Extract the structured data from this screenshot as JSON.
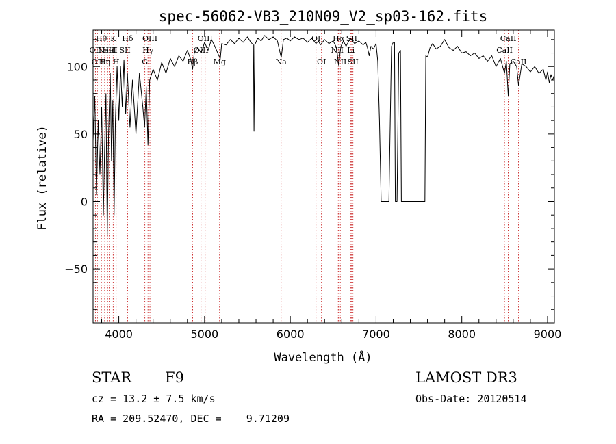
{
  "colors": {
    "axis": "#000000",
    "spectrum": "#000000",
    "line_marker": "#c00000",
    "background": "#ffffff"
  },
  "info": {
    "object_type": "STAR",
    "subclass": "F9",
    "survey": "LAMOST DR3",
    "cz": "cz = 13.2 ± 7.5 km/s",
    "obs_date": "Obs-Date: 20120514",
    "coords": "RA = 209.52470, DEC =    9.71209"
  },
  "chart_data": {
    "type": "line",
    "title": "spec-56062-VB3_210N09_V2_sp03-162.fits",
    "xlabel": "Wavelength (Å)",
    "ylabel": "Flux (relative)",
    "xlim": [
      3700,
      9080
    ],
    "ylim": [
      -90,
      127
    ],
    "xticks": [
      4000,
      5000,
      6000,
      7000,
      8000,
      9000
    ],
    "yticks": [
      -50,
      0,
      50,
      100
    ],
    "x_minor_step": 200,
    "y_minor_step": 10,
    "spectrum": [
      [
        3700,
        45
      ],
      [
        3720,
        78
      ],
      [
        3740,
        5
      ],
      [
        3760,
        60
      ],
      [
        3780,
        20
      ],
      [
        3800,
        70
      ],
      [
        3820,
        -10
      ],
      [
        3835,
        40
      ],
      [
        3850,
        80
      ],
      [
        3865,
        -25
      ],
      [
        3880,
        50
      ],
      [
        3900,
        95
      ],
      [
        3915,
        30
      ],
      [
        3930,
        75
      ],
      [
        3945,
        -10
      ],
      [
        3960,
        60
      ],
      [
        3980,
        100
      ],
      [
        4000,
        60
      ],
      [
        4020,
        100
      ],
      [
        4040,
        70
      ],
      [
        4060,
        105
      ],
      [
        4080,
        65
      ],
      [
        4100,
        95
      ],
      [
        4130,
        55
      ],
      [
        4160,
        90
      ],
      [
        4200,
        50
      ],
      [
        4240,
        95
      ],
      [
        4280,
        70
      ],
      [
        4300,
        55
      ],
      [
        4320,
        85
      ],
      [
        4340,
        42
      ],
      [
        4360,
        90
      ],
      [
        4400,
        98
      ],
      [
        4450,
        90
      ],
      [
        4500,
        103
      ],
      [
        4550,
        95
      ],
      [
        4600,
        106
      ],
      [
        4650,
        100
      ],
      [
        4700,
        108
      ],
      [
        4750,
        104
      ],
      [
        4800,
        112
      ],
      [
        4840,
        105
      ],
      [
        4861,
        98
      ],
      [
        4880,
        110
      ],
      [
        4920,
        114
      ],
      [
        4960,
        110
      ],
      [
        5000,
        118
      ],
      [
        5040,
        112
      ],
      [
        5080,
        120
      ],
      [
        5120,
        115
      ],
      [
        5167,
        108
      ],
      [
        5184,
        106
      ],
      [
        5200,
        117
      ],
      [
        5250,
        116
      ],
      [
        5300,
        120
      ],
      [
        5350,
        117
      ],
      [
        5400,
        121
      ],
      [
        5450,
        118
      ],
      [
        5500,
        122
      ],
      [
        5540,
        118
      ],
      [
        5570,
        116
      ],
      [
        5577,
        52
      ],
      [
        5585,
        116
      ],
      [
        5620,
        121
      ],
      [
        5660,
        119
      ],
      [
        5700,
        123
      ],
      [
        5750,
        120
      ],
      [
        5800,
        122
      ],
      [
        5850,
        119
      ],
      [
        5889,
        108
      ],
      [
        5895,
        107
      ],
      [
        5920,
        120
      ],
      [
        5960,
        121
      ],
      [
        6000,
        119
      ],
      [
        6050,
        122
      ],
      [
        6100,
        120
      ],
      [
        6150,
        121
      ],
      [
        6200,
        118
      ],
      [
        6250,
        121
      ],
      [
        6300,
        117
      ],
      [
        6330,
        119
      ],
      [
        6350,
        116
      ],
      [
        6400,
        120
      ],
      [
        6450,
        117
      ],
      [
        6500,
        119
      ],
      [
        6540,
        114
      ],
      [
        6563,
        101
      ],
      [
        6590,
        115
      ],
      [
        6620,
        119
      ],
      [
        6650,
        115
      ],
      [
        6700,
        121
      ],
      [
        6750,
        117
      ],
      [
        6800,
        119
      ],
      [
        6850,
        116
      ],
      [
        6880,
        118
      ],
      [
        6900,
        114
      ],
      [
        6920,
        108
      ],
      [
        6940,
        115
      ],
      [
        6970,
        113
      ],
      [
        7000,
        117
      ],
      [
        7020,
        104
      ],
      [
        7040,
        60
      ],
      [
        7060,
        0
      ],
      [
        7100,
        0
      ],
      [
        7150,
        0
      ],
      [
        7180,
        115
      ],
      [
        7200,
        118
      ],
      [
        7215,
        118
      ],
      [
        7225,
        0
      ],
      [
        7245,
        0
      ],
      [
        7265,
        110
      ],
      [
        7285,
        112
      ],
      [
        7295,
        0
      ],
      [
        7350,
        0
      ],
      [
        7450,
        0
      ],
      [
        7540,
        0
      ],
      [
        7570,
        0
      ],
      [
        7580,
        108
      ],
      [
        7600,
        107
      ],
      [
        7630,
        114
      ],
      [
        7660,
        117
      ],
      [
        7700,
        113
      ],
      [
        7750,
        115
      ],
      [
        7800,
        120
      ],
      [
        7850,
        114
      ],
      [
        7900,
        112
      ],
      [
        7950,
        115
      ],
      [
        8000,
        110
      ],
      [
        8050,
        111
      ],
      [
        8100,
        108
      ],
      [
        8150,
        110
      ],
      [
        8200,
        106
      ],
      [
        8250,
        108
      ],
      [
        8300,
        104
      ],
      [
        8350,
        108
      ],
      [
        8400,
        100
      ],
      [
        8450,
        106
      ],
      [
        8498,
        95
      ],
      [
        8520,
        104
      ],
      [
        8542,
        78
      ],
      [
        8560,
        102
      ],
      [
        8600,
        104
      ],
      [
        8640,
        100
      ],
      [
        8662,
        86
      ],
      [
        8700,
        102
      ],
      [
        8750,
        100
      ],
      [
        8800,
        96
      ],
      [
        8850,
        100
      ],
      [
        8900,
        95
      ],
      [
        8950,
        98
      ],
      [
        8980,
        90
      ],
      [
        9000,
        96
      ],
      [
        9020,
        88
      ],
      [
        9040,
        94
      ],
      [
        9060,
        90
      ],
      [
        9080,
        94
      ]
    ],
    "lines": [
      {
        "wl": 3727,
        "label": "OII",
        "row": 2
      },
      {
        "wl": 3750,
        "label": "OII",
        "row": 3
      },
      {
        "wl": 3797,
        "label": "Hθ",
        "row": 1
      },
      {
        "wl": 3835,
        "label": "Hη",
        "row": 3
      },
      {
        "wl": 3869,
        "label": "NeIII",
        "row": 2
      },
      {
        "wl": 3889,
        "label": "HeI",
        "row": 2
      },
      {
        "wl": 3934,
        "label": "K",
        "row": 1
      },
      {
        "wl": 3969,
        "label": "H",
        "row": 3
      },
      {
        "wl": 4072,
        "label": "SII",
        "row": 2
      },
      {
        "wl": 4102,
        "label": "Hδ",
        "row": 1
      },
      {
        "wl": 4304,
        "label": "G",
        "row": 3
      },
      {
        "wl": 4340,
        "label": "Hγ",
        "row": 2
      },
      {
        "wl": 4363,
        "label": "OIII",
        "row": 1
      },
      {
        "wl": 4861,
        "label": "Hβ",
        "row": 3
      },
      {
        "wl": 4959,
        "label": "OIII",
        "row": 2
      },
      {
        "wl": 5007,
        "label": "OIII",
        "row": 1
      },
      {
        "wl": 5175,
        "label": "Mg",
        "row": 3
      },
      {
        "wl": 5893,
        "label": "Na",
        "row": 3
      },
      {
        "wl": 6300,
        "label": "OI",
        "row": 1
      },
      {
        "wl": 6364,
        "label": "OI",
        "row": 3
      },
      {
        "wl": 6548,
        "label": "NII",
        "row": 2
      },
      {
        "wl": 6563,
        "label": "Hα",
        "row": 1
      },
      {
        "wl": 6583,
        "label": "NII",
        "row": 3
      },
      {
        "wl": 6707,
        "label": "Li",
        "row": 2
      },
      {
        "wl": 6716,
        "label": "SII",
        "row": 1
      },
      {
        "wl": 6731,
        "label": "SII",
        "row": 3
      },
      {
        "wl": 8498,
        "label": "CaII",
        "row": 2
      },
      {
        "wl": 8542,
        "label": "CaII",
        "row": 1
      },
      {
        "wl": 8662,
        "label": "CaII",
        "row": 3
      }
    ]
  }
}
